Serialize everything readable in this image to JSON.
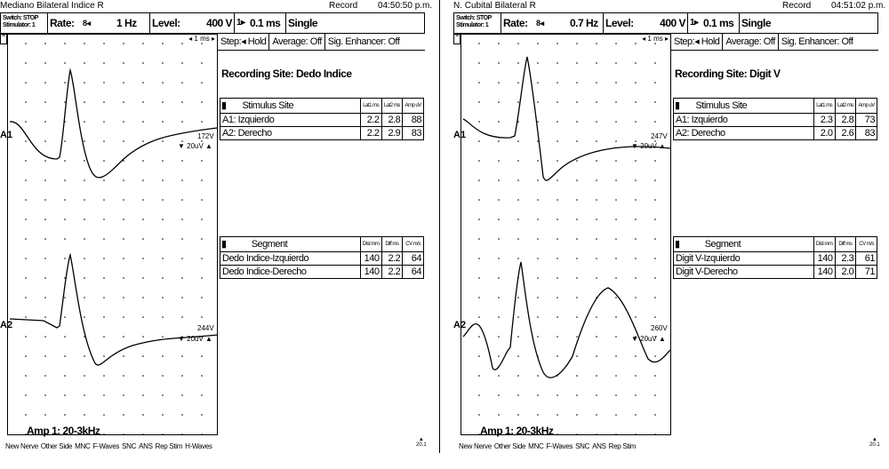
{
  "panels": [
    {
      "title": "Mediano Bilateral Indice R",
      "record": "Record",
      "time": "04:50:50 p.m.",
      "switch": "Switch:  STOP",
      "stimulator": "Stimulator:    1",
      "rate_label": "Rate:",
      "rate_value": "1 Hz",
      "level_label": "Level:",
      "level_value": "400 V",
      "duration": "0.1 ms",
      "mode": "Single",
      "step_label": "Step:",
      "step_value": "Hold",
      "average": "Average: Off",
      "sig_enh": "Sig. Enhancer: Off",
      "timebase": "1 ms",
      "recording_site": "Recording Site: Dedo Indice",
      "stim_header": "Stimulus Site",
      "lat1_header": "Lat1 ms",
      "lat2_header": "Lat2 ms",
      "amp_header": "Amp uV",
      "stim_rows": [
        {
          "site": "A1: Izquierdo",
          "lat1": "2.2",
          "lat2": "2.8",
          "amp": "88"
        },
        {
          "site": "A2: Derecho",
          "lat1": "2.2",
          "lat2": "2.9",
          "amp": "83"
        }
      ],
      "seg_header": "Segment",
      "dist_header": "Dist mm",
      "diff_header": "Diff ms",
      "cv_header": "CV m/s",
      "seg_rows": [
        {
          "seg": "Dedo Indice-Izquierdo",
          "dist": "140",
          "diff": "2.2",
          "cv": "64"
        },
        {
          "seg": "Dedo Indice-Derecho",
          "dist": "140",
          "diff": "2.2",
          "cv": "64"
        }
      ],
      "a1": "A1",
      "a2": "A2",
      "a1_uv": "172V",
      "a1_scale": "▼ 20uV ▲",
      "a2_uv": "244V",
      "a2_scale": "▼ 20uV ▲",
      "amp_filter": "Amp 1: 20-3kHz",
      "keys": [
        "New Nerve",
        "Other Side",
        "MNC",
        "F-Waves",
        "SNC",
        "ANS",
        "Rep Stim",
        "H-Waves"
      ],
      "corner": "20.1"
    },
    {
      "title": "N. Cubital Bilateral R",
      "record": "Record",
      "time": "04:51:02 p.m.",
      "switch": "Switch:  STOP",
      "stimulator": "Stimulator:    1",
      "rate_label": "Rate:",
      "rate_value": "0.7 Hz",
      "level_label": "Level:",
      "level_value": "400 V",
      "duration": "0.1 ms",
      "mode": "Single",
      "step_label": "Step:",
      "step_value": "Hold",
      "average": "Average: Off",
      "sig_enh": "Sig. Enhancer: Off",
      "timebase": "1 ms",
      "recording_site": "Recording Site: Digit V",
      "stim_header": "Stimulus Site",
      "lat1_header": "Lat1 ms",
      "lat2_header": "Lat2 ms",
      "amp_header": "Amp uV",
      "stim_rows": [
        {
          "site": "A1: Izquierdo",
          "lat1": "2.3",
          "lat2": "2.8",
          "amp": "73"
        },
        {
          "site": "A2: Derecho",
          "lat1": "2.0",
          "lat2": "2.6",
          "amp": "83"
        }
      ],
      "seg_header": "Segment",
      "dist_header": "Dist mm",
      "diff_header": "Diff ms",
      "cv_header": "CV m/s",
      "seg_rows": [
        {
          "seg": "Digit V-Izquierdo",
          "dist": "140",
          "diff": "2.3",
          "cv": "61"
        },
        {
          "seg": "Digit V-Derecho",
          "dist": "140",
          "diff": "2.0",
          "cv": "71"
        }
      ],
      "a1": "A1",
      "a2": "A2",
      "a1_uv": "247V",
      "a1_scale": "▼ 20uV ▲",
      "a2_uv": "260V",
      "a2_scale": "▼ 20uV ▲",
      "amp_filter": "Amp 1: 20-3kHz",
      "keys": [
        "New Nerve",
        "Other Side",
        "MNC",
        "F-Waves",
        "SNC",
        "ANS",
        "Rep Stim"
      ],
      "corner": "20.1"
    }
  ]
}
